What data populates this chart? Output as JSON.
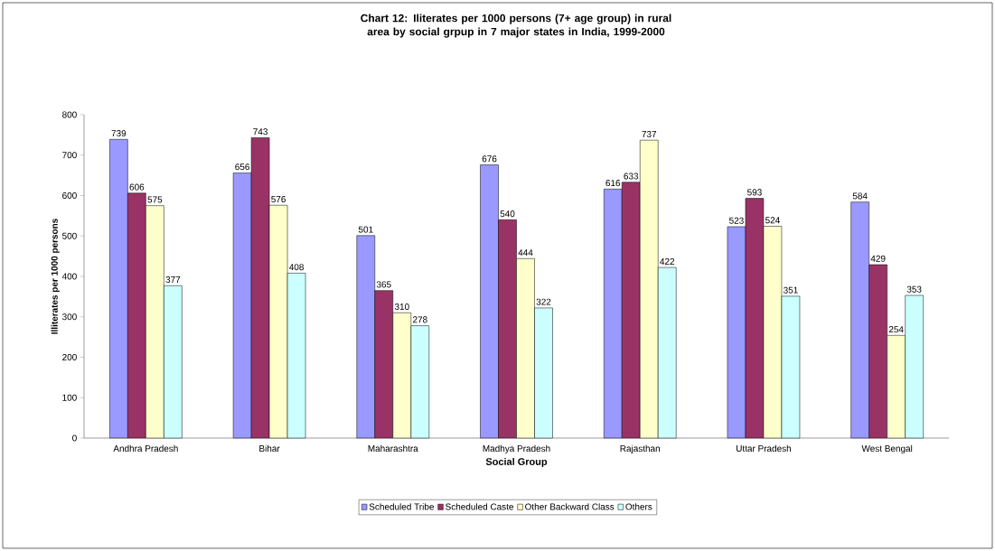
{
  "chart_data": {
    "type": "bar",
    "title": "Chart 12: Iliterates per 1000 persons (7+ age group) in rural area by social grpup  in 7 major states in India, 1999-2000",
    "xlabel": "Social Group",
    "ylabel": "Illiterates per 1000 persons",
    "categories": [
      "Andhra Pradesh",
      "Bihar",
      "Maharashtra",
      "Madhya Pradesh",
      "Rajasthan",
      "Uttar Pradesh",
      "West Bengal"
    ],
    "series": [
      {
        "name": "Scheduled Tribe",
        "color": "#9999ff",
        "values": [
          739,
          656,
          501,
          676,
          616,
          523,
          584
        ]
      },
      {
        "name": "Scheduled Caste",
        "color": "#993366",
        "values": [
          606,
          743,
          365,
          540,
          633,
          593,
          429
        ]
      },
      {
        "name": "Other Backward Class",
        "color": "#ffffcc",
        "values": [
          575,
          576,
          310,
          444,
          737,
          524,
          254
        ]
      },
      {
        "name": "Others",
        "color": "#ccffff",
        "values": [
          377,
          408,
          278,
          322,
          422,
          351,
          353
        ]
      }
    ],
    "ylim": [
      0,
      800
    ],
    "yticks": [
      0,
      100,
      200,
      300,
      400,
      500,
      600,
      700,
      800
    ],
    "legend": "bottom",
    "data_labels": true
  }
}
